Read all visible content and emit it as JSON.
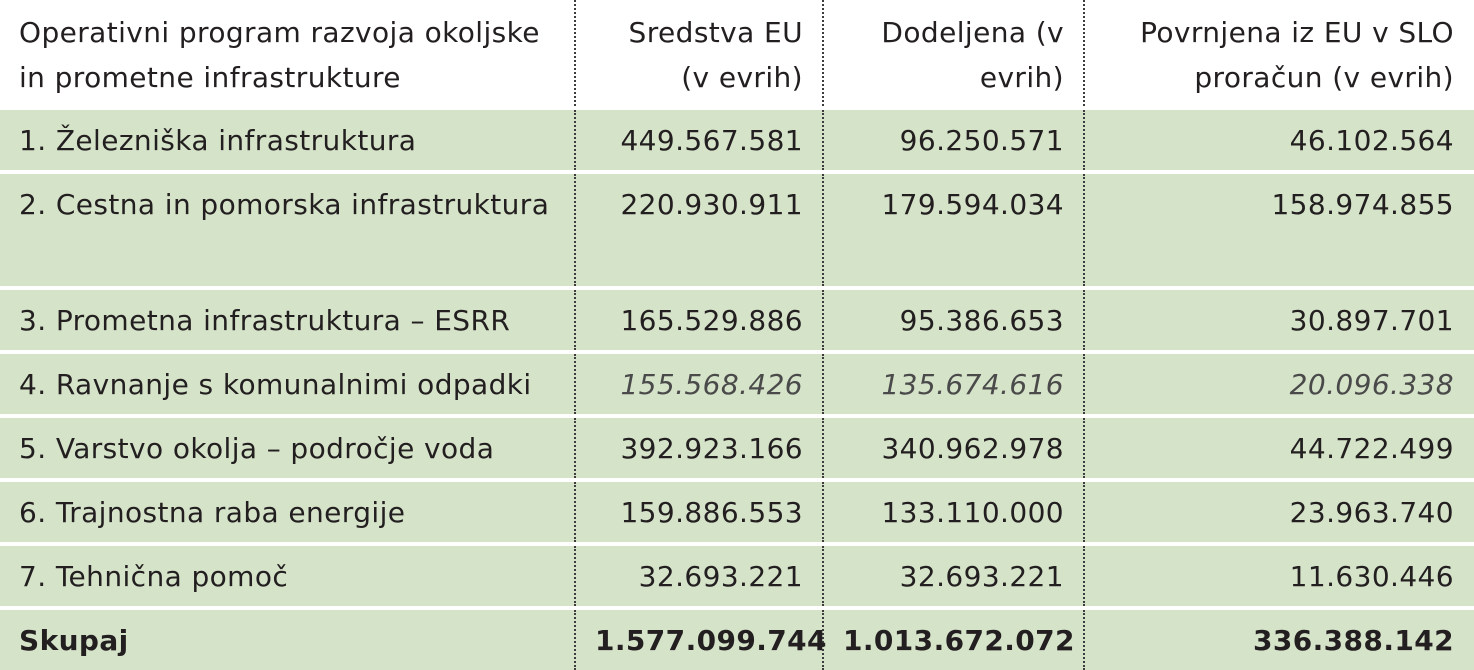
{
  "table": {
    "headers": [
      "Operativni program razvoja okoljske in prometne infrastrukture",
      "Sredstva EU (v evrih)",
      "Dodeljena (v evrih)",
      "Povrnjena iz EU v SLO proračun (v evrih)"
    ],
    "rows": [
      [
        "1. Železniška infrastruktura",
        "449.567.581",
        "96.250.571",
        "46.102.564"
      ],
      [
        "2. Cestna in pomorska infrastruktura",
        "220.930.911",
        "179.594.034",
        "158.974.855"
      ],
      [
        "3. Prometna infrastruktura – ESRR",
        "165.529.886",
        "95.386.653",
        "30.897.701"
      ],
      [
        "4. Ravnanje s komunalnimi odpadki",
        "155.568.426",
        "135.674.616",
        "20.096.338"
      ],
      [
        "5. Varstvo okolja – področje voda",
        "392.923.166",
        "340.962.978",
        "44.722.499"
      ],
      [
        "6. Trajnostna raba energije",
        "159.886.553",
        "133.110.000",
        "23.963.740"
      ],
      [
        "7. Tehnična pomoč",
        "32.693.221",
        "32.693.221",
        "11.630.446"
      ]
    ],
    "total": [
      "Skupaj",
      "1.577.099.744",
      "1.013.672.072",
      "336.388.142"
    ]
  },
  "colors": {
    "row_background": "#d5e3c9",
    "separator": "#3d3d3d",
    "text": "#231f20"
  }
}
